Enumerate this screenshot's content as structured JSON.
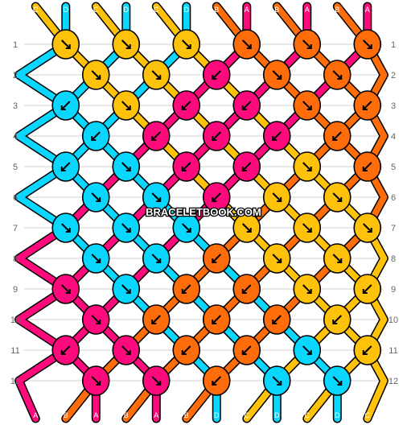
{
  "watermark": "BRACELETBOOK.COM",
  "row_labels": [
    "1",
    "2",
    "3",
    "4",
    "5",
    "6",
    "7",
    "8",
    "9",
    "10",
    "11",
    "12"
  ],
  "top_strands": [
    "C",
    "D",
    "C",
    "D",
    "C",
    "D",
    "B",
    "A",
    "B",
    "A",
    "B",
    "A"
  ],
  "bottom_strands": [
    "A",
    "B",
    "A",
    "B",
    "A",
    "B",
    "D",
    "C",
    "D",
    "C",
    "D",
    "C"
  ],
  "colors": {
    "A": "#ff0a7d",
    "B": "#ff6c0a",
    "C": "#ffc20a",
    "D": "#0ad7ff"
  },
  "knots": [
    {
      "row": 1,
      "items": [
        {
          "color": "C",
          "arrow": "se"
        },
        {
          "color": "C",
          "arrow": "se"
        },
        {
          "color": "C",
          "arrow": "se"
        },
        {
          "color": "B",
          "arrow": "se"
        },
        {
          "color": "B",
          "arrow": "se"
        },
        {
          "color": "B",
          "arrow": "se"
        }
      ]
    },
    {
      "row": 2,
      "items": [
        {
          "color": "C",
          "arrow": "se"
        },
        {
          "color": "C",
          "arrow": "se"
        },
        {
          "color": "A",
          "arrow": "sw"
        },
        {
          "color": "B",
          "arrow": "se"
        },
        {
          "color": "B",
          "arrow": "se"
        }
      ]
    },
    {
      "row": 3,
      "items": [
        {
          "color": "D",
          "arrow": "sw"
        },
        {
          "color": "C",
          "arrow": "se"
        },
        {
          "color": "A",
          "arrow": "sw"
        },
        {
          "color": "A",
          "arrow": "sw"
        },
        {
          "color": "B",
          "arrow": "se"
        },
        {
          "color": "B",
          "arrow": "sw"
        }
      ]
    },
    {
      "row": 4,
      "items": [
        {
          "color": "D",
          "arrow": "sw"
        },
        {
          "color": "A",
          "arrow": "sw"
        },
        {
          "color": "A",
          "arrow": "sw"
        },
        {
          "color": "A",
          "arrow": "sw"
        },
        {
          "color": "B",
          "arrow": "sw"
        }
      ]
    },
    {
      "row": 5,
      "items": [
        {
          "color": "D",
          "arrow": "sw"
        },
        {
          "color": "D",
          "arrow": "se"
        },
        {
          "color": "A",
          "arrow": "sw"
        },
        {
          "color": "A",
          "arrow": "sw"
        },
        {
          "color": "C",
          "arrow": "se"
        },
        {
          "color": "B",
          "arrow": "sw"
        }
      ]
    },
    {
      "row": 6,
      "items": [
        {
          "color": "D",
          "arrow": "se"
        },
        {
          "color": "D",
          "arrow": "se"
        },
        {
          "color": "A",
          "arrow": "sw"
        },
        {
          "color": "C",
          "arrow": "se"
        },
        {
          "color": "C",
          "arrow": "se"
        }
      ]
    },
    {
      "row": 7,
      "items": [
        {
          "color": "D",
          "arrow": "se"
        },
        {
          "color": "D",
          "arrow": "se"
        },
        {
          "color": "D",
          "arrow": "se"
        },
        {
          "color": "C",
          "arrow": "se"
        },
        {
          "color": "C",
          "arrow": "se"
        },
        {
          "color": "C",
          "arrow": "se"
        }
      ]
    },
    {
      "row": 8,
      "items": [
        {
          "color": "D",
          "arrow": "se"
        },
        {
          "color": "D",
          "arrow": "se"
        },
        {
          "color": "B",
          "arrow": "sw"
        },
        {
          "color": "C",
          "arrow": "se"
        },
        {
          "color": "C",
          "arrow": "se"
        }
      ]
    },
    {
      "row": 9,
      "items": [
        {
          "color": "A",
          "arrow": "se"
        },
        {
          "color": "D",
          "arrow": "se"
        },
        {
          "color": "B",
          "arrow": "sw"
        },
        {
          "color": "B",
          "arrow": "sw"
        },
        {
          "color": "C",
          "arrow": "se"
        },
        {
          "color": "C",
          "arrow": "sw"
        }
      ]
    },
    {
      "row": 10,
      "items": [
        {
          "color": "A",
          "arrow": "se"
        },
        {
          "color": "B",
          "arrow": "sw"
        },
        {
          "color": "B",
          "arrow": "sw"
        },
        {
          "color": "B",
          "arrow": "sw"
        },
        {
          "color": "C",
          "arrow": "sw"
        }
      ]
    },
    {
      "row": 11,
      "items": [
        {
          "color": "A",
          "arrow": "sw"
        },
        {
          "color": "A",
          "arrow": "se"
        },
        {
          "color": "B",
          "arrow": "sw"
        },
        {
          "color": "B",
          "arrow": "sw"
        },
        {
          "color": "D",
          "arrow": "se"
        },
        {
          "color": "C",
          "arrow": "sw"
        }
      ]
    },
    {
      "row": 12,
      "items": [
        {
          "color": "A",
          "arrow": "se"
        },
        {
          "color": "A",
          "arrow": "se"
        },
        {
          "color": "B",
          "arrow": "sw"
        },
        {
          "color": "D",
          "arrow": "se"
        },
        {
          "color": "D",
          "arrow": "se"
        }
      ]
    }
  ]
}
